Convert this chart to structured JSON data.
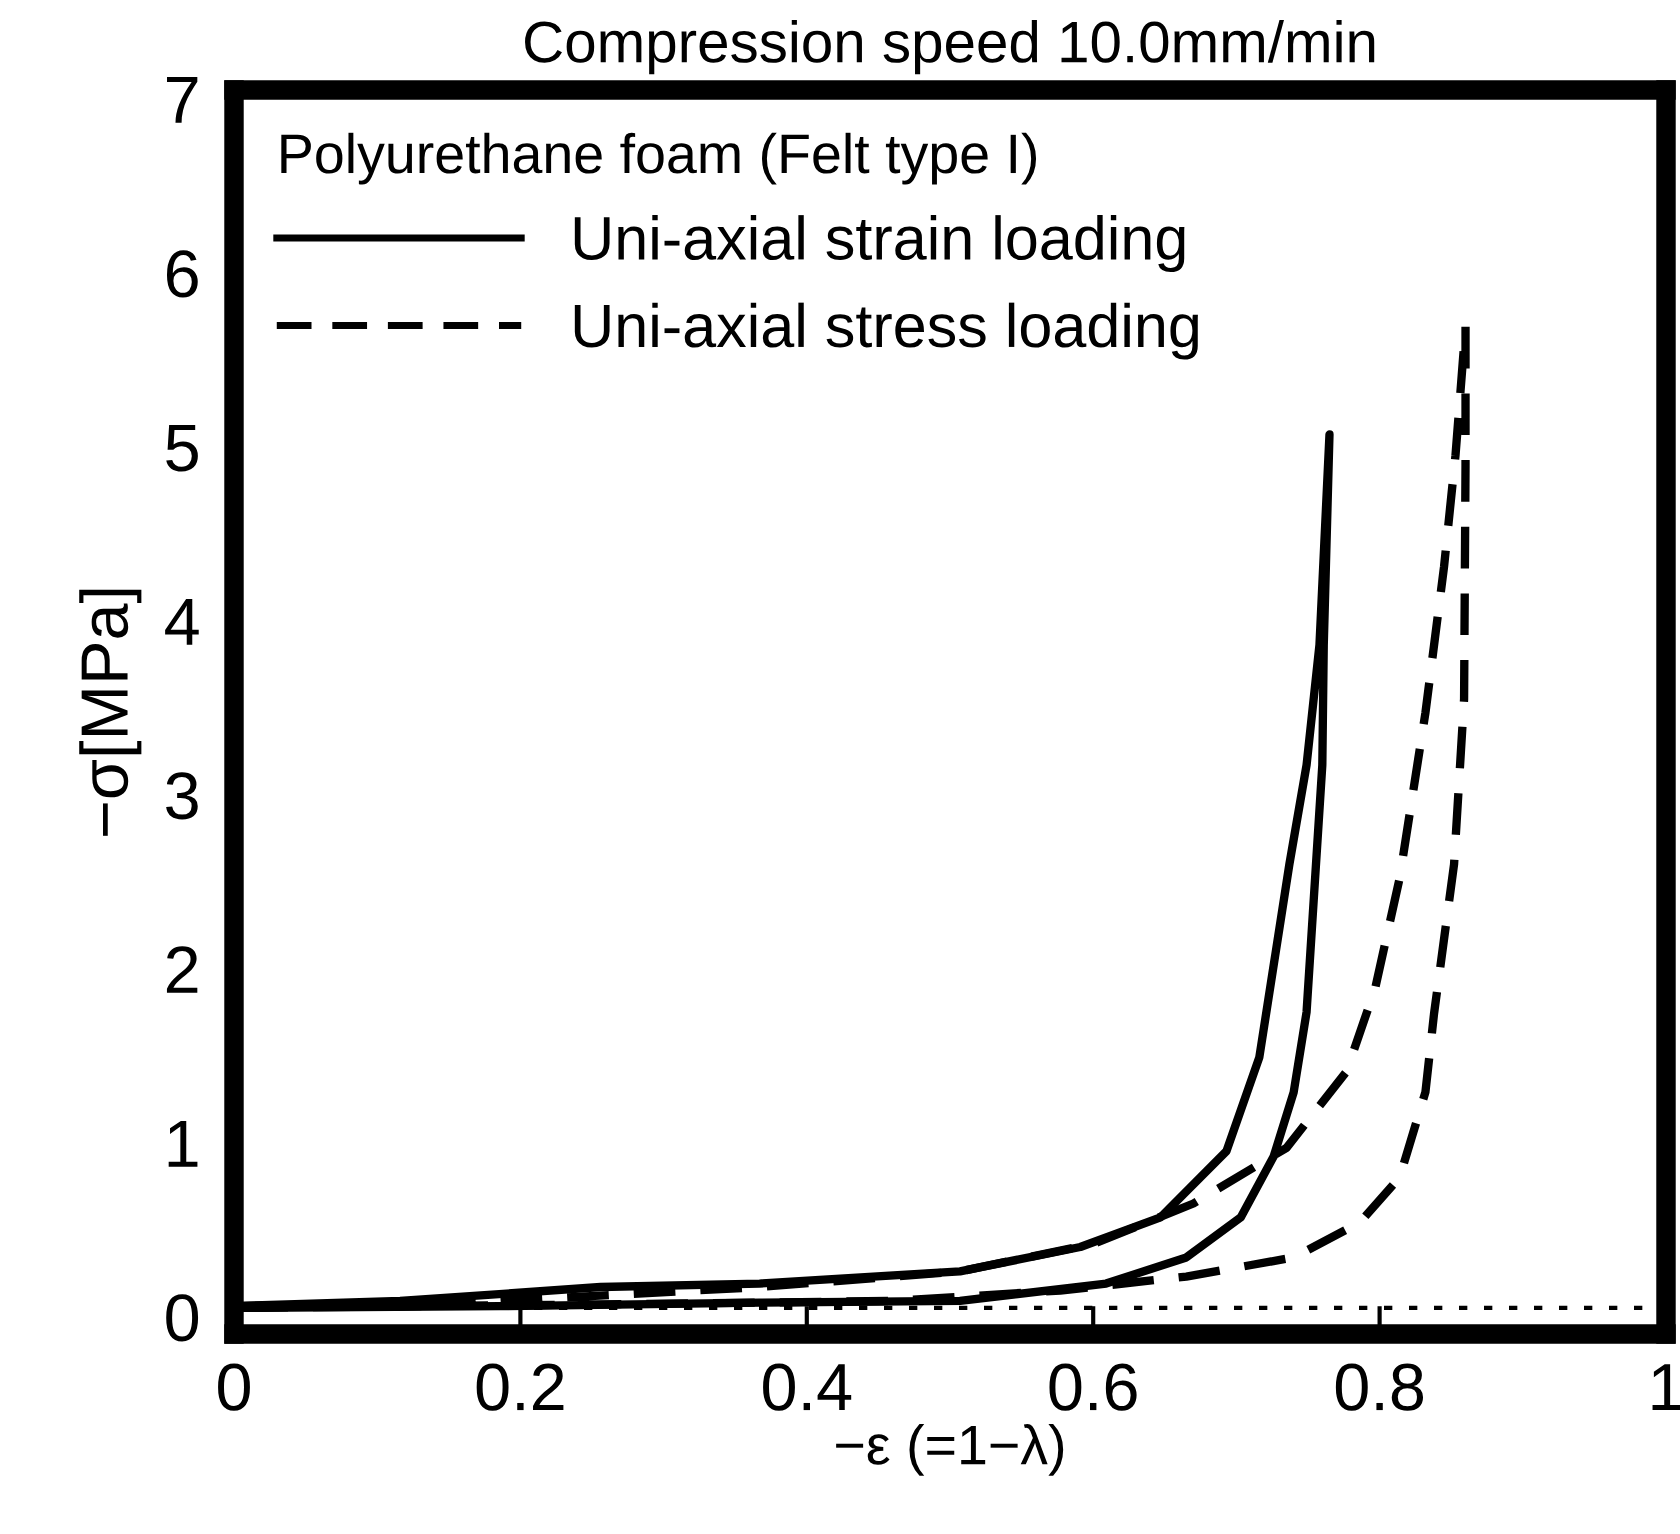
{
  "chart_data": {
    "type": "line",
    "title": "Compression speed 10.0mm/min",
    "xlabel": "−ε (=1−λ)",
    "ylabel": "−σ[MPa]",
    "legend_title": "Polyurethane foam (Felt type I)",
    "legend": "top left",
    "grid": false,
    "marker": "none",
    "xlim": [
      0,
      1
    ],
    "ylim": [
      -0.1,
      7.05
    ],
    "xticks": [
      0,
      0.2,
      0.4,
      0.6,
      0.8,
      1
    ],
    "yticks": [
      0,
      1,
      2,
      3,
      4,
      5,
      6,
      7
    ],
    "ref_lines": [
      {
        "axis": "y",
        "value": 0.05,
        "line_style": "dotted",
        "color": "#000000"
      }
    ],
    "series": [
      {
        "name": "Uni-axial strain loading",
        "color": "#000000",
        "line_style": "solid",
        "x": [
          0,
          0.116,
          0.256,
          0.367,
          0.507,
          0.591,
          0.647,
          0.693,
          0.716,
          0.737,
          0.749,
          0.758,
          0.765,
          0.761,
          0.76,
          0.749,
          0.74,
          0.726,
          0.703,
          0.665,
          0.609,
          0.507,
          0.367,
          0.186,
          0
        ],
        "values": [
          0.06,
          0.09,
          0.17,
          0.19,
          0.26,
          0.4,
          0.57,
          0.95,
          1.49,
          2.6,
          3.17,
          3.86,
          5.07,
          3.86,
          3.17,
          1.75,
          1.29,
          0.92,
          0.57,
          0.34,
          0.19,
          0.09,
          0.08,
          0.06,
          0.05
        ]
      },
      {
        "name": "Uni-axial stress loading",
        "color": "#000000",
        "line_style": "dashed",
        "x": [
          0,
          0.186,
          0.367,
          0.507,
          0.601,
          0.67,
          0.735,
          0.777,
          0.797,
          0.814,
          0.832,
          0.845,
          0.853,
          0.86,
          0.86,
          0.859,
          0.852,
          0.838,
          0.832,
          0.814,
          0.786,
          0.74,
          0.665,
          0.577,
          0.461,
          0.256,
          0
        ],
        "values": [
          0.06,
          0.09,
          0.17,
          0.26,
          0.42,
          0.65,
          0.97,
          1.41,
          1.89,
          2.52,
          3.47,
          4.31,
          4.95,
          5.69,
          4.89,
          3.55,
          2.6,
          1.74,
          1.29,
          0.8,
          0.54,
          0.34,
          0.23,
          0.15,
          0.09,
          0.07,
          0.05
        ]
      }
    ]
  }
}
